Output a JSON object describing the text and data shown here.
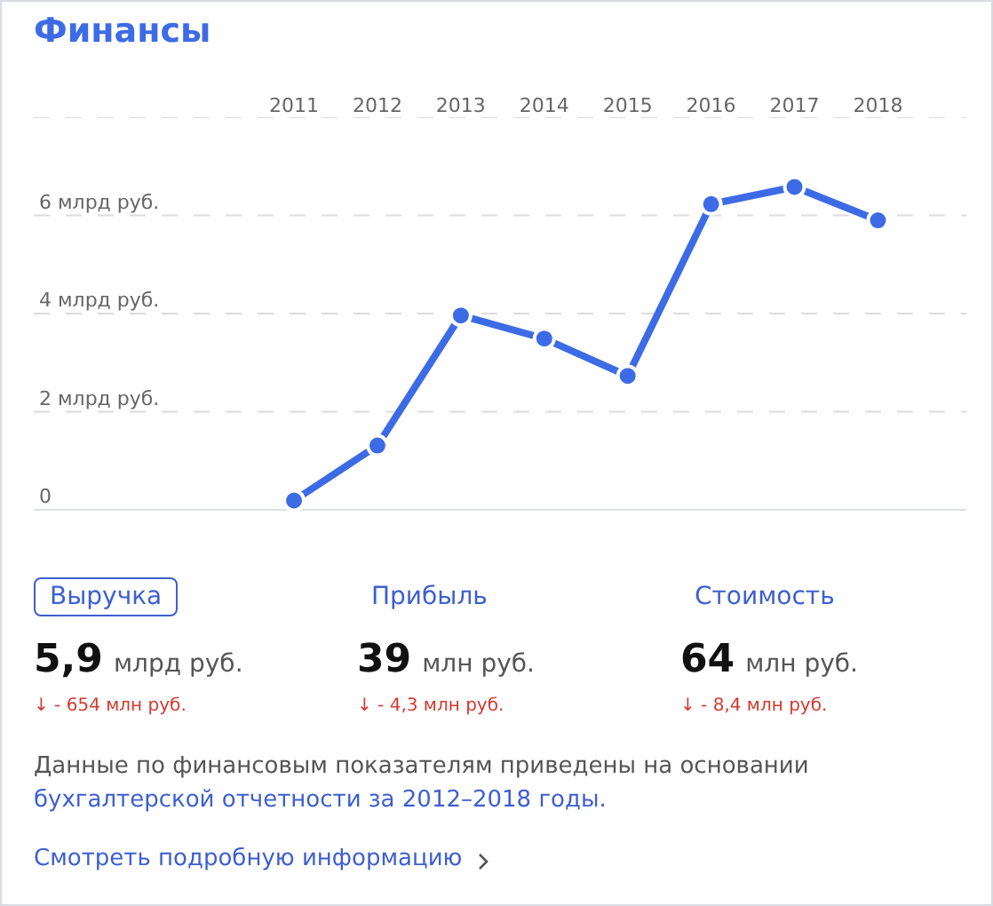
{
  "chart_data": {
    "type": "line",
    "title": "Финансы",
    "categories": [
      "2011",
      "2012",
      "2013",
      "2014",
      "2015",
      "2016",
      "2017",
      "2018"
    ],
    "series": [
      {
        "color": "#3d6be6",
        "values": [
          0.19,
          1.31,
          3.96,
          3.49,
          2.73,
          6.23,
          6.58,
          5.9
        ]
      }
    ],
    "ylim": [
      0,
      8
    ],
    "yticks": [
      {
        "value": 0,
        "label": "0"
      },
      {
        "value": 2,
        "label": "2 млрд руб."
      },
      {
        "value": 4,
        "label": "4 млрд руб."
      },
      {
        "value": 6,
        "label": "6 млрд руб."
      },
      {
        "value": 8,
        "label": null
      }
    ],
    "grid": "y",
    "marker": "circle",
    "line_style": "solid",
    "annotations": [
      "Выручка",
      "Прибыль",
      "Стоимость",
      "5,9",
      "млрд руб.",
      "39",
      "млн руб.",
      "64",
      "млн руб.",
      "↓ - 654 млн руб.",
      "↓ - 4,3 млн руб.",
      "↓ - 8,4 млн руб.",
      "Данные по финансовым показателям приведены на основании",
      "бухгалтерской отчетности за 2012–2018 годы.",
      "Смотреть подробную информацию"
    ]
  }
}
